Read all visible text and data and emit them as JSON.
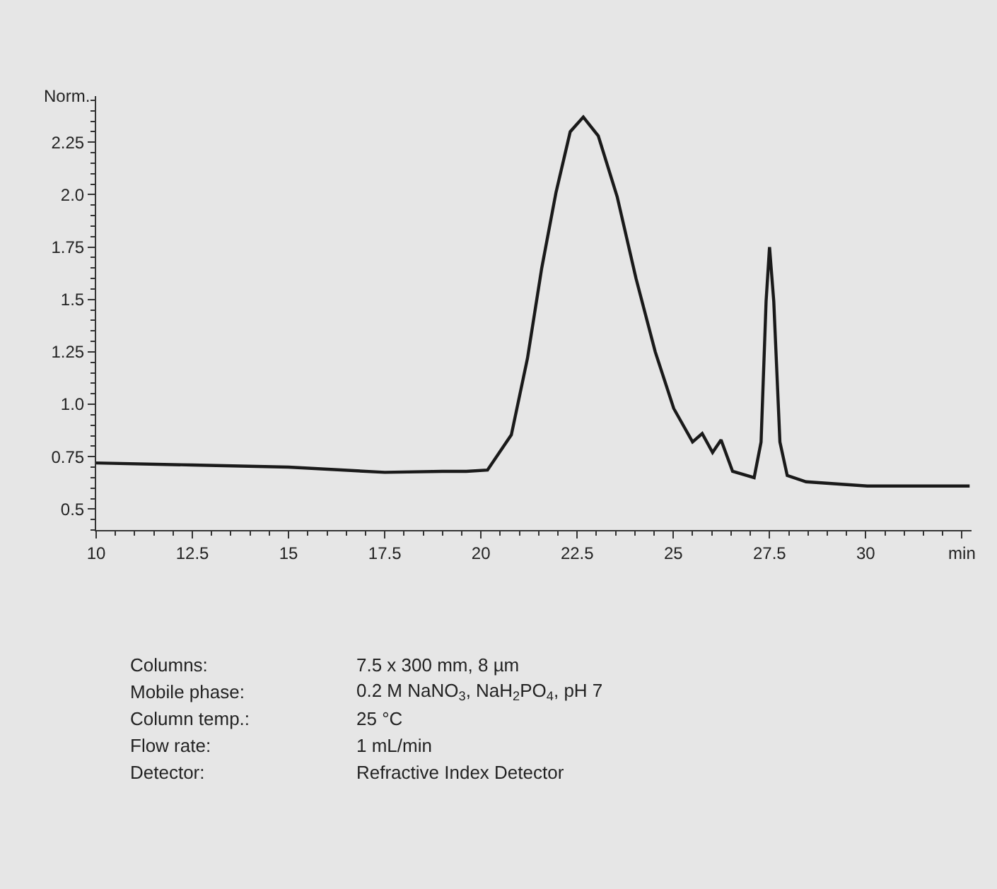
{
  "chart_data": {
    "type": "line",
    "ylabel": "Norm.",
    "x": [
      10,
      12.5,
      15,
      17.5,
      19,
      19.62,
      20.17,
      20.79,
      21.21,
      21.58,
      21.95,
      22.32,
      22.66,
      23.05,
      23.54,
      24.03,
      24.53,
      25.01,
      25.5,
      25.75,
      26.02,
      26.24,
      26.54,
      27.1,
      27.28,
      27.41,
      27.5,
      27.61,
      27.77,
      27.96,
      28.45,
      30.04,
      32.7
    ],
    "series": [
      {
        "color": "#1a1a1a",
        "values": [
          0.72,
          0.71,
          0.7,
          0.675,
          0.68,
          0.68,
          0.686,
          0.854,
          1.22,
          1.65,
          2.01,
          2.3,
          2.37,
          2.28,
          1.99,
          1.6,
          1.25,
          0.98,
          0.82,
          0.86,
          0.77,
          0.83,
          0.68,
          0.65,
          0.82,
          1.49,
          1.75,
          1.49,
          0.82,
          0.66,
          0.63,
          0.61,
          0.61
        ]
      }
    ],
    "xlim": [
      10,
      32.75
    ],
    "xticks": [
      10,
      12.5,
      15,
      17.5,
      20,
      22.5,
      25,
      27.5,
      30,
      {
        "value": 32.5,
        "label": "min"
      }
    ],
    "ylim": [
      0.4,
      2.47
    ],
    "yticks": [
      0.5,
      0.75,
      {
        "value": 1,
        "label": "1.0"
      },
      1.25,
      1.5,
      1.75,
      {
        "value": 2,
        "label": "2.0"
      },
      2.25
    ],
    "grid": false,
    "marker": "none",
    "line_style": "solid",
    "annotations": [
      "Columns:",
      "7.5 x 300 mm, 8 µm",
      "Mobile phase:",
      "0.2 M NaNO$_{3}$, NaH$_{2}$PO$_{4}$, pH 7",
      "Column temp.:",
      "25 °C",
      "Flow rate:",
      "1 mL/min",
      "Detector:",
      "Refractive Index Detector"
    ]
  }
}
